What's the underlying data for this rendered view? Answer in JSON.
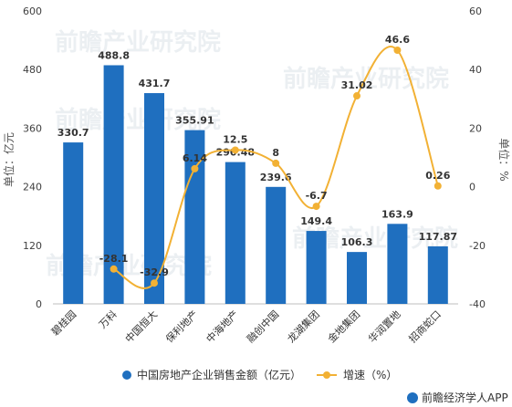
{
  "chart_data": {
    "type": "bar",
    "categories": [
      "碧桂园",
      "万科",
      "中国恒大",
      "保利地产",
      "中海地产",
      "融创中国",
      "龙湖集团",
      "金地集团",
      "华润置地",
      "招商蛇口"
    ],
    "series": [
      {
        "name": "中国房地产企业销售金额（亿元）",
        "type": "bar",
        "axis": "left",
        "color": "#1f6fbf",
        "values": [
          330.7,
          488.8,
          431.7,
          355.91,
          290.48,
          239.6,
          149.4,
          106.3,
          163.9,
          117.87
        ],
        "labels": [
          "330.7",
          "488.8",
          "431.7",
          "355.91",
          "290.48",
          "239.6",
          "149.4",
          "106.3",
          "163.9",
          "117.87"
        ]
      },
      {
        "name": "增速（%）",
        "type": "line",
        "axis": "right",
        "color": "#f2b134",
        "values": [
          null,
          -28.1,
          -32.9,
          6.14,
          12.5,
          8,
          -6.7,
          31.02,
          46.6,
          0.26
        ],
        "labels": [
          "",
          "-28.1",
          "-32.9",
          "6.14",
          "12.5",
          "8",
          "-6.7",
          "31.02",
          "46.6",
          "0.26"
        ]
      }
    ],
    "y_left": {
      "label": "单位：亿元",
      "min": 0,
      "max": 600,
      "ticks": [
        "0",
        "120",
        "240",
        "360",
        "480",
        "600"
      ]
    },
    "y_right": {
      "label": "单位：%",
      "min": -40,
      "max": 60,
      "ticks": [
        "-40",
        "-20",
        "0",
        "20",
        "40",
        "60"
      ]
    },
    "legend_position": "bottom",
    "grid": false
  },
  "source": "前瞻经济学人APP",
  "watermark": "前瞻产业研究院"
}
